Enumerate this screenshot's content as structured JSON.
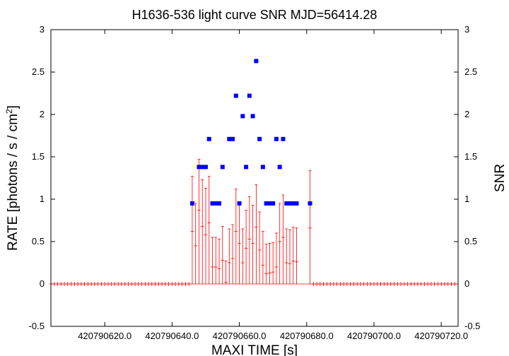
{
  "chart_data": {
    "type": "scatter",
    "title": "H1636-536 light curve  SNR MJD=56414.28",
    "xlabel": "MAXI TIME [s]",
    "ylabel_left": "RATE [photons / s / cm",
    "ylabel_left_sup": "2",
    "ylabel_left_end": "]",
    "ylabel_right": "SNR",
    "xlim": [
      420790604,
      420790725
    ],
    "ylim": [
      -0.5,
      3
    ],
    "x_ticks": [
      420790620,
      420790640,
      420790660,
      420790680,
      420790700,
      420790720
    ],
    "x_tick_labels": [
      "420790620.0",
      "420790640.0",
      "420790660.0",
      "420790680.0",
      "420790700.0",
      "420790720.0"
    ],
    "y_ticks": [
      -0.5,
      0,
      0.5,
      1,
      1.5,
      2,
      2.5,
      3
    ],
    "y_tick_labels": [
      "-0.5",
      "0",
      "0.5",
      "1",
      "1.5",
      "2",
      "2.5",
      "3"
    ],
    "series_colors": {
      "rate": "#ff0000",
      "snr": "#0000ff"
    },
    "rate_series": {
      "x_zero_points": [
        420790604,
        420790605,
        420790606,
        420790607,
        420790608,
        420790609,
        420790610,
        420790611,
        420790612,
        420790613,
        420790614,
        420790615,
        420790616,
        420790617,
        420790618,
        420790619,
        420790620,
        420790621,
        420790622,
        420790623,
        420790624,
        420790625,
        420790626,
        420790627,
        420790628,
        420790629,
        420790630,
        420790631,
        420790632,
        420790633,
        420790634,
        420790635,
        420790636,
        420790637,
        420790638,
        420790639,
        420790640,
        420790641,
        420790642,
        420790643,
        420790644,
        420790645,
        420790682,
        420790683,
        420790684,
        420790685,
        420790686,
        420790687,
        420790688,
        420790689,
        420790690,
        420790691,
        420790692,
        420790693,
        420790694,
        420790695,
        420790696,
        420790697,
        420790698,
        420790699,
        420790700,
        420790701,
        420790702,
        420790703,
        420790704,
        420790705,
        420790706,
        420790707,
        420790708,
        420790709,
        420790710,
        420790711,
        420790712,
        420790713,
        420790714,
        420790715,
        420790716,
        420790717,
        420790718,
        420790719,
        420790720,
        420790721,
        420790722,
        420790723,
        420790724
      ],
      "points": [
        {
          "x": 420790646,
          "y": 0.62,
          "err": 0.65
        },
        {
          "x": 420790647,
          "y": 0.45,
          "err": 0.5
        },
        {
          "x": 420790648,
          "y": 0.87,
          "err": 0.6
        },
        {
          "x": 420790649,
          "y": 0.68,
          "err": 0.55
        },
        {
          "x": 420790650,
          "y": 0.58,
          "err": 0.55
        },
        {
          "x": 420790651,
          "y": 0.72,
          "err": 0.55
        },
        {
          "x": 420790652,
          "y": 0.2,
          "err": 0.35
        },
        {
          "x": 420790653,
          "y": 0.2,
          "err": 0.35
        },
        {
          "x": 420790654,
          "y": 0.18,
          "err": 0.35
        },
        {
          "x": 420790655,
          "y": 0.28,
          "err": 0.4
        },
        {
          "x": 420790656,
          "y": 0.02,
          "err": 0.25
        },
        {
          "x": 420790657,
          "y": 0.25,
          "err": 0.4
        },
        {
          "x": 420790658,
          "y": 0.3,
          "err": 0.4
        },
        {
          "x": 420790659,
          "y": 0.62,
          "err": 0.5
        },
        {
          "x": 420790660,
          "y": 0.48,
          "err": 0.45
        },
        {
          "x": 420790661,
          "y": 0.25,
          "err": 0.4
        },
        {
          "x": 420790662,
          "y": 0.42,
          "err": 0.45
        },
        {
          "x": 420790663,
          "y": 0.53,
          "err": 0.5
        },
        {
          "x": 420790664,
          "y": 0.48,
          "err": 0.45
        },
        {
          "x": 420790665,
          "y": 0.67,
          "err": 0.5
        },
        {
          "x": 420790666,
          "y": 0.4,
          "err": 0.45
        },
        {
          "x": 420790667,
          "y": 0.22,
          "err": 0.4
        },
        {
          "x": 420790668,
          "y": 0.12,
          "err": 0.35
        },
        {
          "x": 420790669,
          "y": 0.13,
          "err": 0.35
        },
        {
          "x": 420790670,
          "y": 0.14,
          "err": 0.35
        },
        {
          "x": 420790671,
          "y": 0.2,
          "err": 0.4
        },
        {
          "x": 420790672,
          "y": 0.5,
          "err": 0.45
        },
        {
          "x": 420790673,
          "y": 0.55,
          "err": 0.5
        },
        {
          "x": 420790674,
          "y": 0.25,
          "err": 0.4
        },
        {
          "x": 420790675,
          "y": 0.24,
          "err": 0.4
        },
        {
          "x": 420790676,
          "y": 0.27,
          "err": 0.4
        },
        {
          "x": 420790677,
          "y": 0.26,
          "err": 0.4
        },
        {
          "x": 420790681,
          "y": 0.66,
          "err": 0.68
        }
      ]
    },
    "snr_series": {
      "points": [
        {
          "x": 420790646,
          "y": 0.95
        },
        {
          "x": 420790648,
          "y": 1.38
        },
        {
          "x": 420790649,
          "y": 1.38
        },
        {
          "x": 420790650,
          "y": 1.38
        },
        {
          "x": 420790651,
          "y": 1.71
        },
        {
          "x": 420790652,
          "y": 0.95
        },
        {
          "x": 420790653,
          "y": 0.95
        },
        {
          "x": 420790654,
          "y": 0.95
        },
        {
          "x": 420790655,
          "y": 1.38
        },
        {
          "x": 420790657,
          "y": 1.71
        },
        {
          "x": 420790658,
          "y": 1.71
        },
        {
          "x": 420790659,
          "y": 2.22
        },
        {
          "x": 420790660,
          "y": 0.95
        },
        {
          "x": 420790661,
          "y": 1.98
        },
        {
          "x": 420790662,
          "y": 1.38
        },
        {
          "x": 420790663,
          "y": 2.22
        },
        {
          "x": 420790664,
          "y": 1.98
        },
        {
          "x": 420790665,
          "y": 2.63
        },
        {
          "x": 420790666,
          "y": 1.71
        },
        {
          "x": 420790667,
          "y": 1.38
        },
        {
          "x": 420790668,
          "y": 0.95
        },
        {
          "x": 420790669,
          "y": 0.95
        },
        {
          "x": 420790670,
          "y": 0.95
        },
        {
          "x": 420790671,
          "y": 1.71
        },
        {
          "x": 420790672,
          "y": 1.38
        },
        {
          "x": 420790673,
          "y": 1.71
        },
        {
          "x": 420790674,
          "y": 0.95
        },
        {
          "x": 420790675,
          "y": 0.95
        },
        {
          "x": 420790676,
          "y": 0.95
        },
        {
          "x": 420790677,
          "y": 0.95
        },
        {
          "x": 420790681,
          "y": 0.95
        }
      ]
    }
  }
}
